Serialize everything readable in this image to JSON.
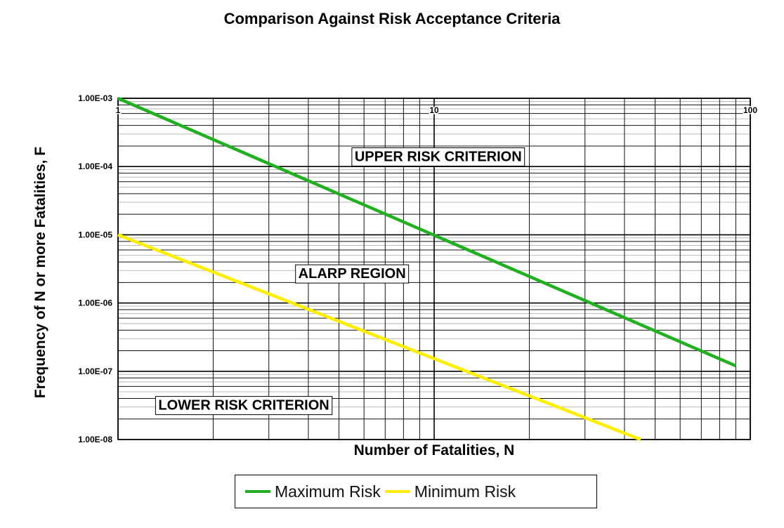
{
  "chart_data": {
    "type": "line",
    "title": "Comparison Against Risk Acceptance Criteria",
    "xlabel": "Number of Fatalities, N",
    "ylabel": "Frequency of N or more Fatalities, F",
    "x_scale": "log",
    "y_scale": "log",
    "xlim": [
      1,
      100
    ],
    "ylim": [
      1e-08,
      0.001
    ],
    "x_tick_labels": [
      {
        "value": 1,
        "label": "1"
      },
      {
        "value": 10,
        "label": "10"
      },
      {
        "value": 100,
        "label": "100"
      }
    ],
    "y_tick_labels": [
      {
        "value": 0.001,
        "label": "1.00E-03"
      },
      {
        "value": 0.0001,
        "label": "1.00E-04"
      },
      {
        "value": 1e-05,
        "label": "1.00E-05"
      },
      {
        "value": 1e-06,
        "label": "1.00E-06"
      },
      {
        "value": 1e-07,
        "label": "1.00E-07"
      },
      {
        "value": 1e-08,
        "label": "1.00E-08"
      }
    ],
    "grid": true,
    "series": [
      {
        "name": "Maximum Risk",
        "color": "#22b022",
        "x": [
          1,
          90
        ],
        "y": [
          0.001,
          1.2e-07
        ]
      },
      {
        "name": "Minimum Risk",
        "color": "#ffee00",
        "x": [
          1,
          45
        ],
        "y": [
          1e-05,
          1e-08
        ]
      }
    ],
    "annotations": [
      {
        "text": "UPPER RISK CRITERION",
        "x": 10.3,
        "y": 0.000145
      },
      {
        "text": "ALARP REGION",
        "x": 5.5,
        "y": 2.8e-06
      },
      {
        "text": "LOWER RISK CRITERION",
        "x": 2.5,
        "y": 3.3e-08
      }
    ],
    "legend_position": "bottom-center"
  }
}
